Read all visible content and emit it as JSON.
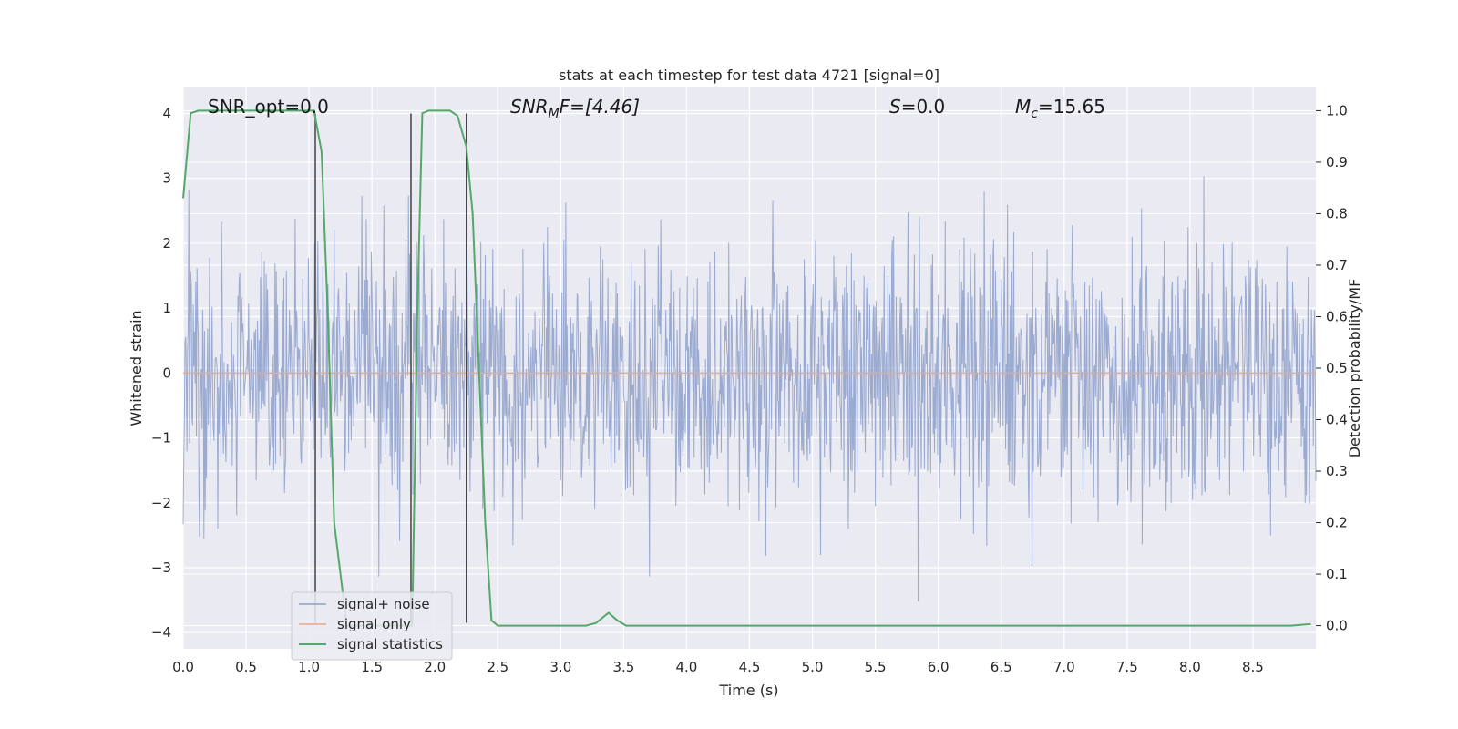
{
  "chart_data": {
    "type": "line",
    "title": "stats at each timestep for test data 4721 [signal=0]",
    "xlabel": "Time (s)",
    "ylabel_left": "Whitened strain",
    "ylabel_right": "Detection probability/MF",
    "xlim": [
      0.0,
      9.0
    ],
    "ylim_left": [
      -4.25,
      4.4
    ],
    "ylim_right": [
      -0.045,
      1.045
    ],
    "x_ticks": [
      0.0,
      0.5,
      1.0,
      1.5,
      2.0,
      2.5,
      3.0,
      3.5,
      4.0,
      4.5,
      5.0,
      5.5,
      6.0,
      6.5,
      7.0,
      7.5,
      8.0,
      8.5
    ],
    "x_tick_labels": [
      "0.0",
      "0.5",
      "1.0",
      "1.5",
      "2.0",
      "2.5",
      "3.0",
      "3.5",
      "4.0",
      "4.5",
      "5.0",
      "5.5",
      "6.0",
      "6.5",
      "7.0",
      "7.5",
      "8.0",
      "8.5"
    ],
    "y_left_ticks": [
      4,
      3,
      2,
      1,
      0,
      -1,
      -2,
      -3,
      -4
    ],
    "y_left_tick_labels": [
      "4",
      "3",
      "2",
      "1",
      "0",
      "−1",
      "−2",
      "−3",
      "−4"
    ],
    "y_right_ticks": [
      1.0,
      0.9,
      0.8,
      0.7,
      0.6,
      0.5,
      0.4,
      0.3,
      0.2,
      0.1,
      0.0
    ],
    "y_right_tick_labels": [
      "1.0",
      "0.9",
      "0.8",
      "0.7",
      "0.6",
      "0.5",
      "0.4",
      "0.3",
      "0.2",
      "0.1",
      "0.0"
    ],
    "grid": true,
    "legend_position": "lower-left",
    "legend": [
      {
        "label": "signal+ noise",
        "color": "#8c9fca"
      },
      {
        "label": "signal only",
        "color": "#e8a889"
      },
      {
        "label": "signal statistics",
        "color": "#55a868"
      }
    ],
    "annotations": {
      "snr_opt": "SNR_opt=0.0",
      "snr_mf_main": "SNR",
      "snr_mf_sub": "M",
      "snr_mf_rest": "F=[4.46]",
      "s_main": "S",
      "s_rest": "=0.0",
      "mc_main": "M",
      "mc_sub": "c",
      "mc_rest": "=15.65"
    },
    "vertical_lines_x": [
      1.05,
      1.81,
      2.25
    ],
    "vertical_lines_ylim": [
      -3.85,
      4.0
    ],
    "noise": {
      "series_name": "signal+ noise",
      "sample_rate": 200,
      "std": 1.0,
      "seed": 4721,
      "color": "#8c9fca"
    },
    "signal_only": {
      "series_name": "signal only",
      "value": 0.0,
      "color": "#e8a889"
    },
    "statistics": {
      "series_name": "signal statistics",
      "color": "#55a868",
      "x": [
        0.0,
        0.06,
        0.12,
        0.5,
        1.0,
        1.04,
        1.1,
        1.15,
        1.2,
        1.3,
        1.4,
        1.5,
        1.6,
        1.7,
        1.78,
        1.82,
        1.86,
        1.9,
        1.95,
        2.0,
        2.05,
        2.12,
        2.18,
        2.25,
        2.3,
        2.35,
        2.4,
        2.45,
        2.5,
        2.6,
        2.8,
        3.0,
        3.2,
        3.28,
        3.38,
        3.45,
        3.52,
        4.0,
        5.0,
        6.0,
        7.0,
        8.0,
        8.8,
        8.96
      ],
      "y": [
        0.83,
        0.995,
        1.0,
        1.0,
        1.0,
        1.0,
        0.92,
        0.6,
        0.2,
        0.0,
        0.0,
        0.0,
        0.0,
        0.0,
        0.0,
        0.0,
        0.6,
        0.995,
        1.0,
        1.0,
        1.0,
        1.0,
        0.99,
        0.93,
        0.8,
        0.5,
        0.2,
        0.01,
        0.0,
        0.0,
        0.0,
        0.0,
        0.0,
        0.005,
        0.025,
        0.01,
        0.0,
        0.0,
        0.0,
        0.0,
        0.0,
        0.0,
        0.0,
        0.003
      ]
    }
  }
}
